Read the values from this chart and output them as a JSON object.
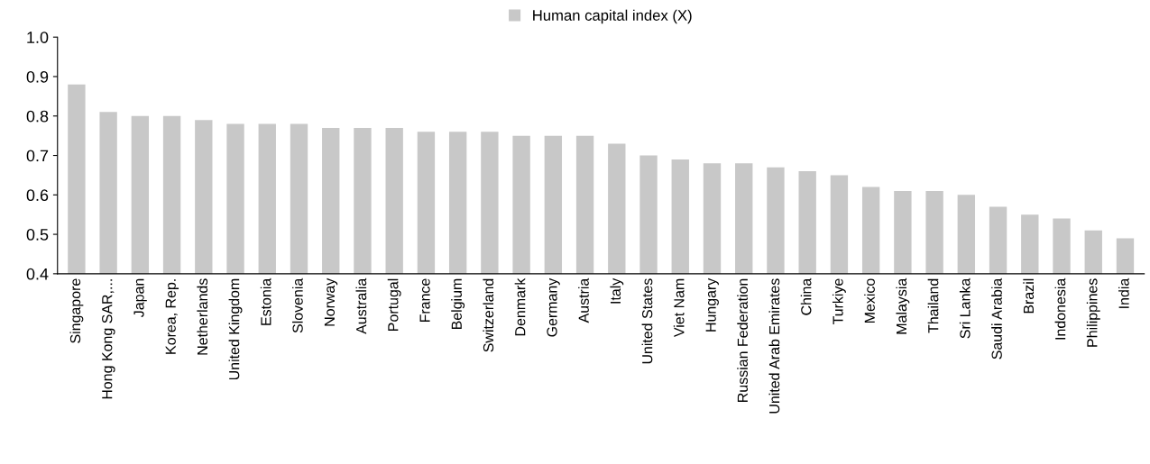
{
  "chart_data": {
    "type": "bar",
    "categories": [
      "Singapore",
      "Hong Kong SAR,...",
      "Japan",
      "Korea, Rep.",
      "Netherlands",
      "United Kingdom",
      "Estonia",
      "Slovenia",
      "Norway",
      "Australia",
      "Portugal",
      "France",
      "Belgium",
      "Switzerland",
      "Denmark",
      "Germany",
      "Austria",
      "Italy",
      "United States",
      "Viet Nam",
      "Hungary",
      "Russian Federation",
      "United Arab Emirates",
      "China",
      "Turkiye",
      "Mexico",
      "Malaysia",
      "Thailand",
      "Sri Lanka",
      "Saudi Arabia",
      "Brazil",
      "Indonesia",
      "Philippines",
      "India"
    ],
    "series": [
      {
        "name": "Human capital index (X)",
        "color": "#c8c8c8",
        "values": [
          0.88,
          0.81,
          0.8,
          0.8,
          0.79,
          0.78,
          0.78,
          0.78,
          0.77,
          0.77,
          0.77,
          0.76,
          0.76,
          0.76,
          0.75,
          0.75,
          0.75,
          0.73,
          0.7,
          0.69,
          0.68,
          0.68,
          0.67,
          0.66,
          0.65,
          0.62,
          0.61,
          0.61,
          0.6,
          0.57,
          0.55,
          0.54,
          0.51,
          0.49
        ]
      }
    ],
    "ylim": [
      0.4,
      1.0
    ],
    "yticks": [
      {
        "value": 0.4,
        "label": "0.4"
      },
      {
        "value": 0.5,
        "label": "0.5"
      },
      {
        "value": 0.6,
        "label": "0.6"
      },
      {
        "value": 0.7,
        "label": "0.7"
      },
      {
        "value": 0.8,
        "label": "0.8"
      },
      {
        "value": 0.9,
        "label": "0.9"
      },
      {
        "value": 1.0,
        "label": "1.0"
      }
    ],
    "grid": false,
    "legend": "top"
  }
}
